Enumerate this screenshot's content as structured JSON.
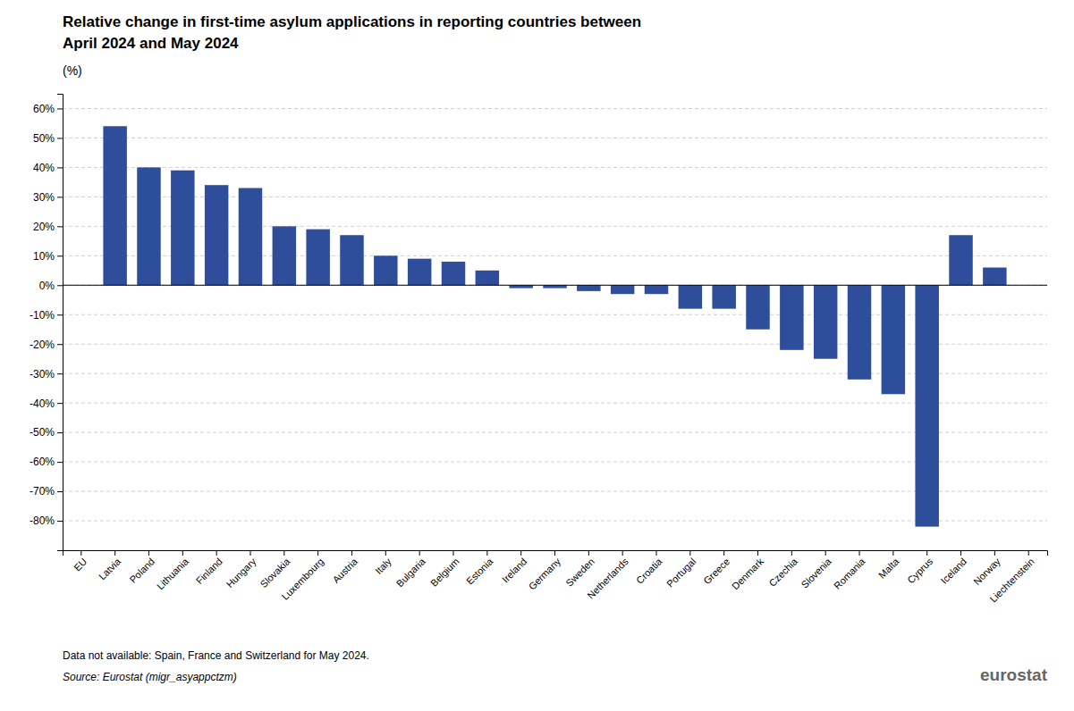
{
  "chart_data": {
    "type": "bar",
    "title": [
      "Relative change in first-time asylum applications in reporting countries between",
      "April 2024 and May 2024"
    ],
    "y_label": "(%)",
    "annotations": [
      "Data not available: Spain, France and Switzerland for May 2024.",
      "Source: Eurostat (migr_asyappctzm)",
      "eurostat"
    ],
    "color": "#2e4d9b",
    "categories": [
      "EU",
      "Latvia",
      "Poland",
      "Lithuania",
      "Finland",
      "Hungary",
      "Slovakia",
      "Luxembourg",
      "Austria",
      "Italy",
      "Bulgaria",
      "Belgium",
      "Estonia",
      "Ireland",
      "Germany",
      "Sweden",
      "Netherlands",
      "Croatia",
      "Portugal",
      "Greece",
      "Denmark",
      "Czechia",
      "Slovenia",
      "Romania",
      "Malta",
      "Cyprus",
      "Iceland",
      "Norway",
      "Liechtenstein"
    ],
    "values": [
      0,
      54,
      40,
      39,
      34,
      33,
      20,
      19,
      17,
      10,
      9,
      8,
      5,
      -1,
      -1,
      -2,
      -3,
      -3,
      -8,
      -8,
      -15,
      -22,
      -25,
      -32,
      -37,
      -82,
      17,
      6,
      0
    ],
    "ylim": [
      -90,
      65
    ],
    "yticks": [
      {
        "value": -80,
        "label": "-80%"
      },
      {
        "value": -70,
        "label": "-70%"
      },
      {
        "value": -60,
        "label": "-60%"
      },
      {
        "value": -50,
        "label": "-50%"
      },
      {
        "value": -40,
        "label": "-40%"
      },
      {
        "value": -30,
        "label": "-30%"
      },
      {
        "value": -20,
        "label": "-20%"
      },
      {
        "value": -10,
        "label": "-10%"
      },
      {
        "value": 0,
        "label": "0%"
      },
      {
        "value": 10,
        "label": "10%"
      },
      {
        "value": 20,
        "label": "20%"
      },
      {
        "value": 30,
        "label": "30%"
      },
      {
        "value": 40,
        "label": "40%"
      },
      {
        "value": 50,
        "label": "50%"
      },
      {
        "value": 60,
        "label": "60%"
      }
    ],
    "grid": true
  }
}
